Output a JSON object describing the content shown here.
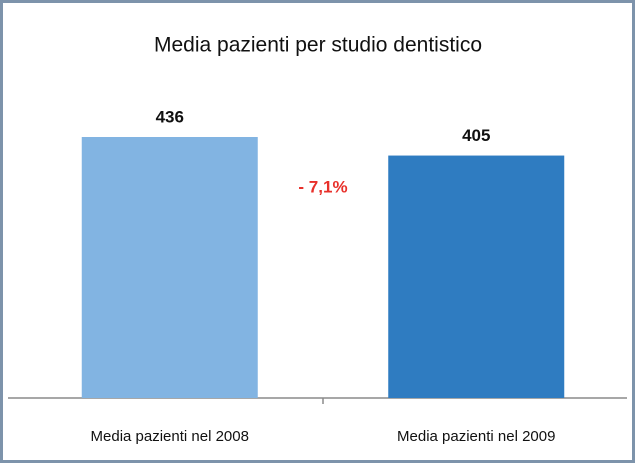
{
  "chart_data": {
    "type": "bar",
    "title": "Media pazienti per studio dentistico",
    "categories": [
      "Media pazienti nel 2008",
      "Media pazienti nel 2009"
    ],
    "values": [
      436,
      405
    ],
    "colors": [
      "#82b4e2",
      "#2f7cc1"
    ],
    "annotations": [
      "- 7,1%"
    ]
  }
}
